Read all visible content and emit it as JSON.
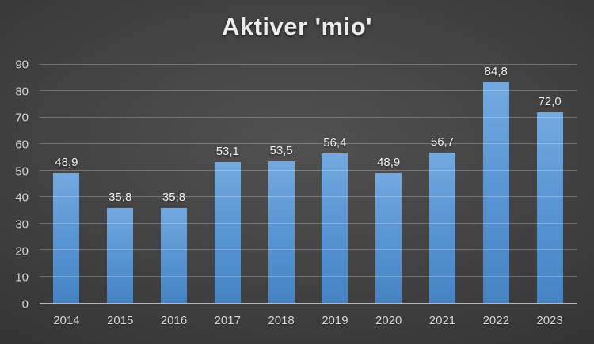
{
  "chart_data": {
    "type": "bar",
    "title": "Aktiver 'mio'",
    "categories": [
      "2014",
      "2015",
      "2016",
      "2017",
      "2018",
      "2019",
      "2020",
      "2021",
      "2022",
      "2023"
    ],
    "values": [
      48.9,
      35.8,
      35.8,
      53.1,
      53.5,
      56.4,
      48.9,
      56.7,
      84.8,
      72.0
    ],
    "value_labels": [
      "48,9",
      "35,8",
      "35,8",
      "53,1",
      "53,5",
      "56,4",
      "48,9",
      "56,7",
      "84,8",
      "72,0"
    ],
    "xlabel": "",
    "ylabel": "",
    "ylim": [
      0,
      90
    ],
    "yticks": [
      0,
      10,
      20,
      30,
      40,
      50,
      60,
      70,
      80,
      90
    ],
    "grid": "horizontal",
    "legend_position": "none",
    "series_name": "Aktiver"
  },
  "colors": {
    "background_center": "#515151",
    "background_edge": "#262626",
    "bar_top": "#73a9df",
    "bar_mid": "#5b97d4",
    "bar_bottom": "#4583c5",
    "gridline": "rgba(255,255,255,0.25)",
    "axis_line": "#b7b7b7",
    "tick_text": "#d9d9d9",
    "value_label_text": "#f0f0f0",
    "title_text": "#ececec"
  }
}
